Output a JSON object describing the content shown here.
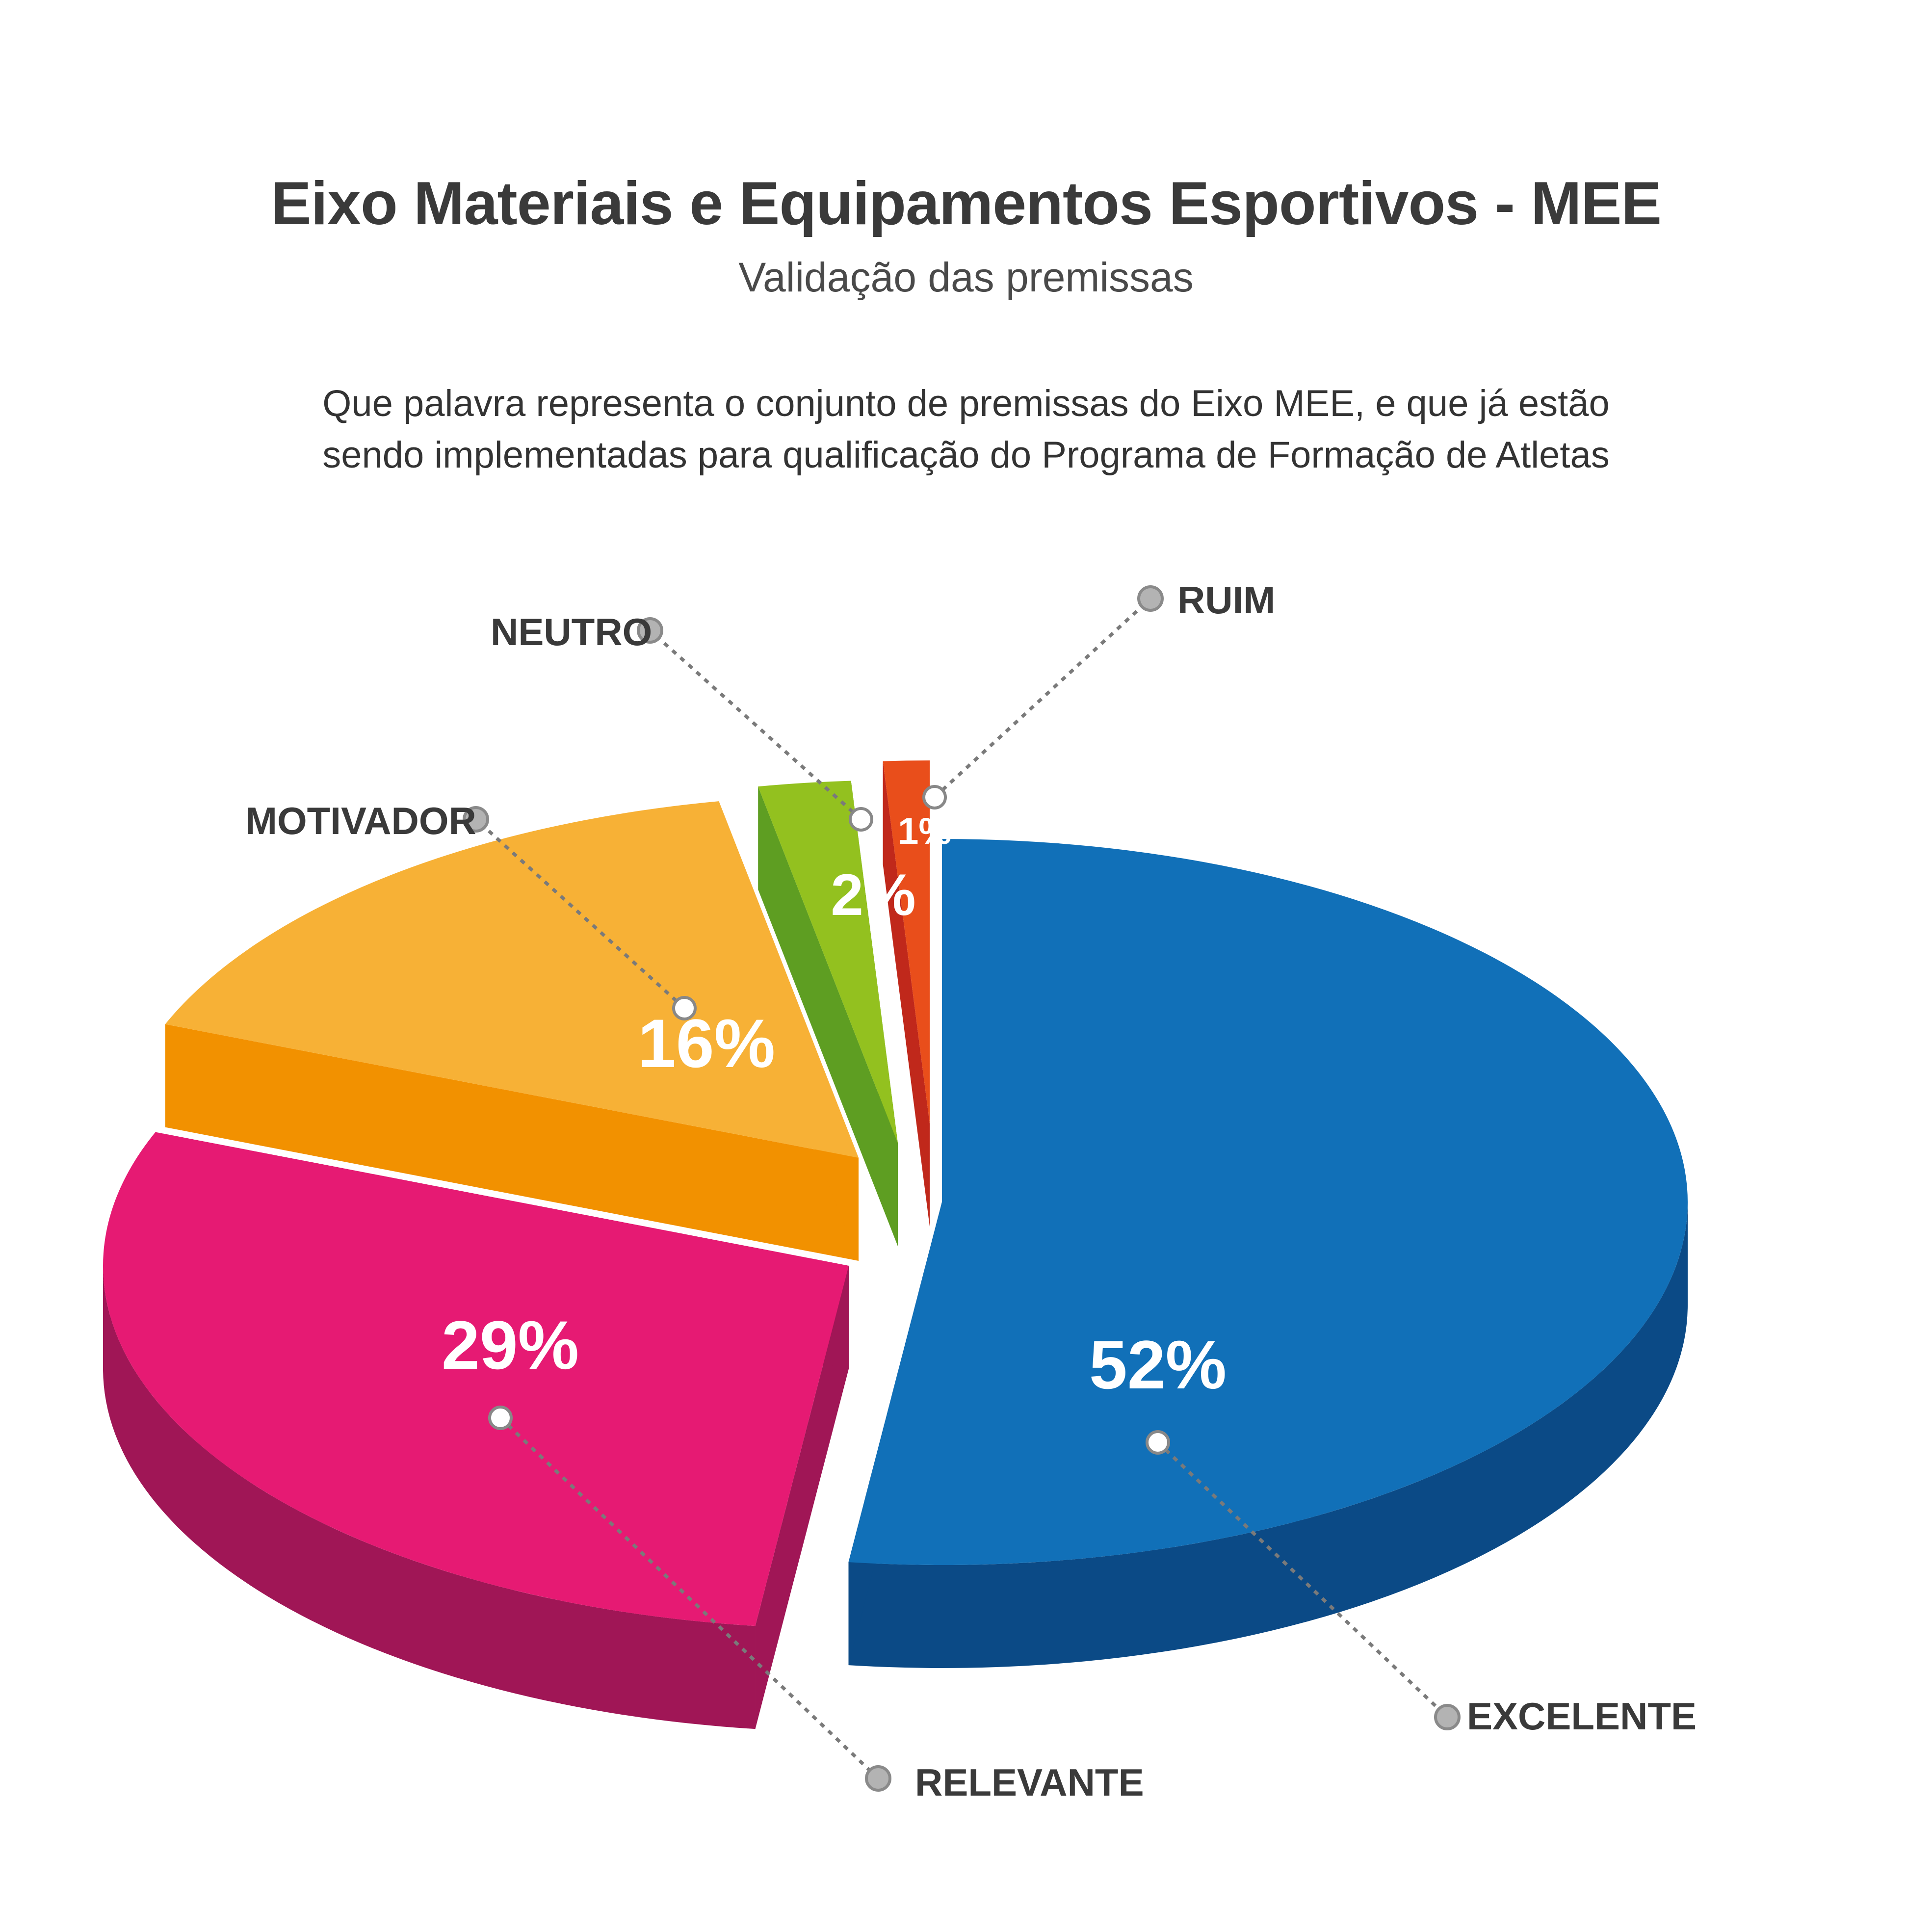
{
  "title": "Eixo Materiais e Equipamentos Esportivos - MEE",
  "subtitle": "Validação das premissas",
  "question": {
    "line1": "Que palavra representa o conjunto de premissas do Eixo MEE, e que já estão",
    "line2": "sendo implementadas para qualificação do Programa de Formação de Atletas"
  },
  "chart_data": {
    "type": "pie",
    "style": "3d-exploded",
    "slices": [
      {
        "label": "EXCELENTE",
        "value": 52,
        "display": "52%",
        "color": "#1170b8",
        "side_color": "#0b4a86"
      },
      {
        "label": "RELEVANTE",
        "value": 29,
        "display": "29%",
        "color": "#e61a73",
        "side_color": "#a01656"
      },
      {
        "label": "MOTIVADOR",
        "value": 16,
        "display": "16%",
        "color": "#f7b136",
        "side_color": "#f29100"
      },
      {
        "label": "NEUTRO",
        "value": 2,
        "display": "2%",
        "color": "#93c11f",
        "side_color": "#5e9e22"
      },
      {
        "label": "RUIM",
        "value": 1,
        "display": "1%",
        "color": "#e94e1b",
        "side_color": "#c0281b"
      }
    ]
  }
}
